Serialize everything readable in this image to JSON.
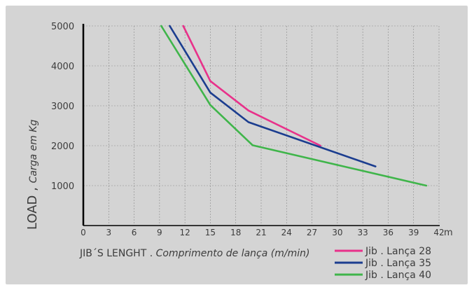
{
  "chart_data": {
    "type": "line",
    "xlabel_main": "JIB´S LENGHT . ",
    "xlabel_sub": "Comprimento de lança (m/min)",
    "ylabel_main": "LOAD , ",
    "ylabel_sub": "Carga em Kg",
    "x_unit": "m",
    "xlim": [
      0,
      42
    ],
    "ylim": [
      0,
      5000
    ],
    "x_ticks": [
      0,
      3,
      6,
      9,
      12,
      15,
      18,
      21,
      24,
      27,
      30,
      33,
      36,
      39,
      42
    ],
    "x_tick_labels": [
      "0",
      "3",
      "6",
      "9",
      "12",
      "15",
      "18",
      "21",
      "24",
      "27",
      "30",
      "33",
      "36",
      "39",
      "42"
    ],
    "y_ticks": [
      1000,
      2000,
      3000,
      4000,
      5000
    ],
    "y_tick_labels": [
      "1000",
      "2000",
      "3000",
      "4000",
      "5000"
    ],
    "grid": true,
    "legend_position": "bottom-right",
    "series": [
      {
        "name": "Jib . Lança 28",
        "color": "#e8318a",
        "points": [
          [
            11.8,
            5000
          ],
          [
            15,
            3620
          ],
          [
            19.5,
            2880
          ],
          [
            28,
            2000
          ]
        ]
      },
      {
        "name": "Jib . Lança 35",
        "color": "#1b3d8f",
        "points": [
          [
            10.2,
            5000
          ],
          [
            15,
            3330
          ],
          [
            19.5,
            2590
          ],
          [
            34.5,
            1480
          ]
        ]
      },
      {
        "name": "Jib . Lança 40",
        "color": "#3fb54a",
        "points": [
          [
            9.2,
            5000
          ],
          [
            15,
            3020
          ],
          [
            20,
            2010
          ],
          [
            40.5,
            1000
          ]
        ]
      }
    ]
  }
}
